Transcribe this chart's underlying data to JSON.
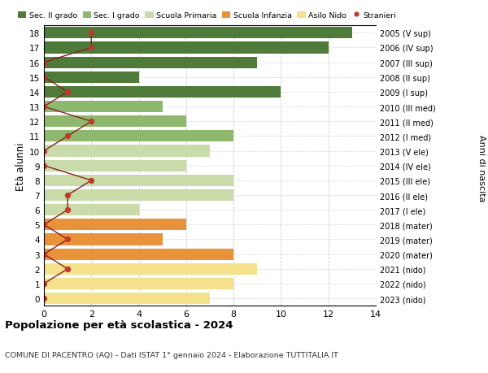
{
  "ages": [
    0,
    1,
    2,
    3,
    4,
    5,
    6,
    7,
    8,
    9,
    10,
    11,
    12,
    13,
    14,
    15,
    16,
    17,
    18
  ],
  "years": [
    "2023 (nido)",
    "2022 (nido)",
    "2021 (nido)",
    "2020 (mater)",
    "2019 (mater)",
    "2018 (mater)",
    "2017 (I ele)",
    "2016 (II ele)",
    "2015 (III ele)",
    "2014 (IV ele)",
    "2013 (V ele)",
    "2012 (I med)",
    "2011 (II med)",
    "2010 (III med)",
    "2009 (I sup)",
    "2008 (II sup)",
    "2007 (III sup)",
    "2006 (IV sup)",
    "2005 (V sup)"
  ],
  "bar_values": [
    7,
    8,
    9,
    8,
    5,
    6,
    4,
    8,
    8,
    6,
    7,
    8,
    6,
    5,
    10,
    4,
    9,
    12,
    13
  ],
  "stranieri_values": [
    0,
    0,
    1,
    0,
    1,
    0,
    1,
    1,
    2,
    0,
    0,
    1,
    2,
    0,
    1,
    0,
    0,
    2,
    2
  ],
  "bar_colors": [
    "#f5e08b",
    "#f5e08b",
    "#f5e08b",
    "#e8923a",
    "#e8923a",
    "#e8923a",
    "#c8dba8",
    "#c8dba8",
    "#c8dba8",
    "#c8dba8",
    "#c8dba8",
    "#8db86e",
    "#8db86e",
    "#8db86e",
    "#4e7a3a",
    "#4e7a3a",
    "#4e7a3a",
    "#4e7a3a",
    "#4e7a3a"
  ],
  "legend_colors": [
    "#4e7a3a",
    "#8db86e",
    "#c8dba8",
    "#e8923a",
    "#f5e08b",
    "#c0392b"
  ],
  "legend_labels": [
    "Sec. II grado",
    "Sec. I grado",
    "Scuola Primaria",
    "Scuola Infanzia",
    "Asilo Nido",
    "Stranieri"
  ],
  "ylabel": "Età alunni",
  "ylabel2": "Anni di nascita",
  "title": "Popolazione per età scolastica - 2024",
  "subtitle": "COMUNE DI PACENTRO (AQ) - Dati ISTAT 1° gennaio 2024 - Elaborazione TUTTITALIA.IT",
  "xlim": [
    0,
    14
  ],
  "xticks": [
    0,
    2,
    4,
    6,
    8,
    10,
    12,
    14
  ],
  "stranieri_color": "#c0392b",
  "line_color": "#8b2020",
  "grid_color": "#cccccc"
}
